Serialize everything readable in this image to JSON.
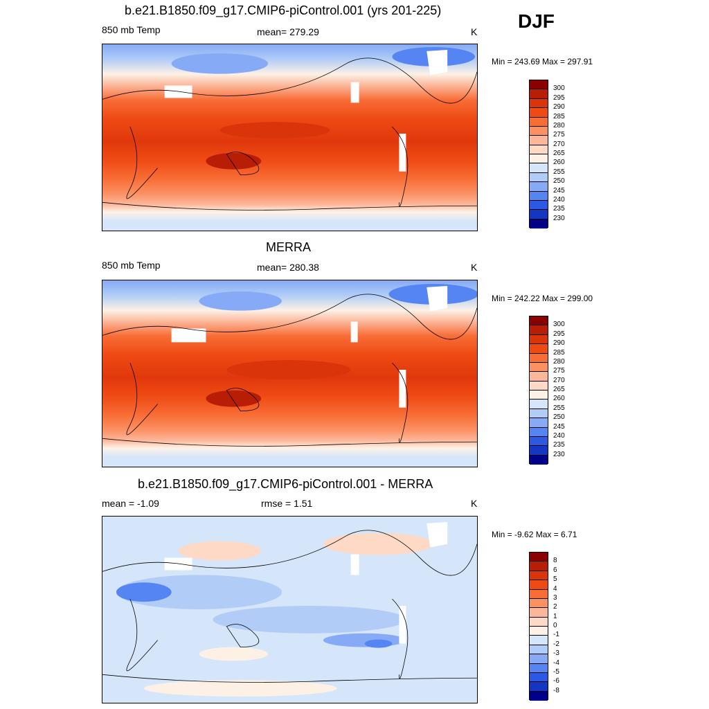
{
  "season": "DJF",
  "units": "K",
  "panels": [
    {
      "title": "b.e21.B1850.f09_g17.CMIP6-piControl.001 (yrs 201-225)",
      "left_label": "850 mb Temp",
      "center_label": "mean= 279.29",
      "right_label": "K",
      "minmax": "Min = 243.69 Max = 297.91"
    },
    {
      "title": "MERRA",
      "left_label": "850 mb Temp",
      "center_label": "mean= 280.38",
      "right_label": "K",
      "minmax": "Min = 242.22 Max = 299.00"
    },
    {
      "title": "b.e21.B1850.f09_g17.CMIP6-piControl.001 - MERRA",
      "left_label": "mean =  -1.09",
      "center_label": "rmse =   1.51",
      "right_label": "K",
      "minmax": "Min =  -9.62 Max =   6.71"
    }
  ],
  "colorbar_abs": {
    "labels": [
      "300",
      "295",
      "290",
      "285",
      "280",
      "275",
      "270",
      "265",
      "260",
      "255",
      "250",
      "245",
      "240",
      "235",
      "230"
    ],
    "colors": [
      "#8b0000",
      "#b81d05",
      "#d9340a",
      "#ef4a14",
      "#f86c35",
      "#fb9061",
      "#fcb79b",
      "#fdd9c6",
      "#fdf1e6",
      "#d6e6fa",
      "#b0ccf7",
      "#86aaf5",
      "#5585f3",
      "#2c59e4",
      "#1436c2",
      "#00008b"
    ]
  },
  "colorbar_diff": {
    "labels": [
      "8",
      "6",
      "5",
      "4",
      "3",
      "2",
      "1",
      "0",
      "-1",
      "-2",
      "-3",
      "-4",
      "-5",
      "-6",
      "-8"
    ],
    "colors": [
      "#8b0000",
      "#b81d05",
      "#d9340a",
      "#ef4a14",
      "#f86c35",
      "#fb9061",
      "#fcb79b",
      "#fdd9c6",
      "#fdf1e6",
      "#d6e6fa",
      "#b0ccf7",
      "#86aaf5",
      "#5585f3",
      "#2c59e4",
      "#1436c2",
      "#00008b"
    ]
  }
}
